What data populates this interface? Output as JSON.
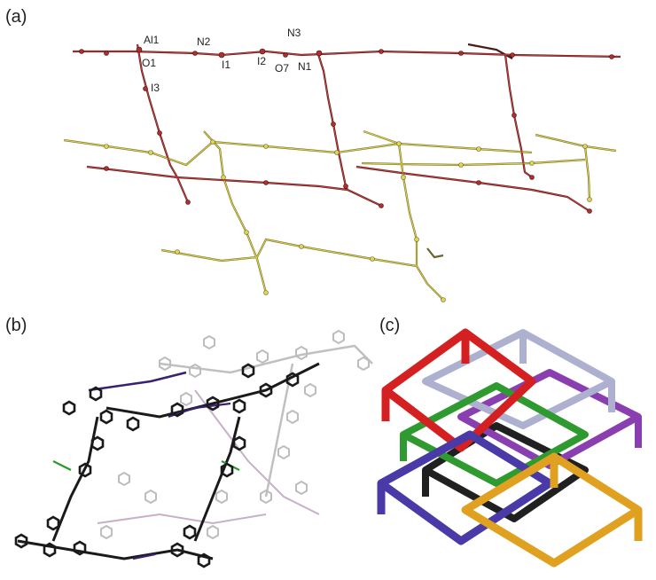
{
  "panels": {
    "a": {
      "label": "(a)"
    },
    "b": {
      "label": "(b)"
    },
    "c": {
      "label": "(c)"
    }
  },
  "atom_labels": {
    "al1": "Al1",
    "o1": "O1",
    "i3": "I3",
    "n2": "N2",
    "i1": "I1",
    "i2": "I2",
    "n3": "N3",
    "o7": "O7",
    "n1": "N1"
  },
  "colors": {
    "red_chain": "#b03030",
    "yellow_chain": "#d8cc40",
    "dark_molecule": "#1a1a1a",
    "light_molecule": "#bdbdbd",
    "net_red": "#d42020",
    "net_lavender": "#aeb0d0",
    "net_green": "#2f9a2f",
    "net_purple": "#8a3fb0",
    "net_blue": "#4a3aa8",
    "net_black": "#202020",
    "net_orange": "#e0a020"
  }
}
